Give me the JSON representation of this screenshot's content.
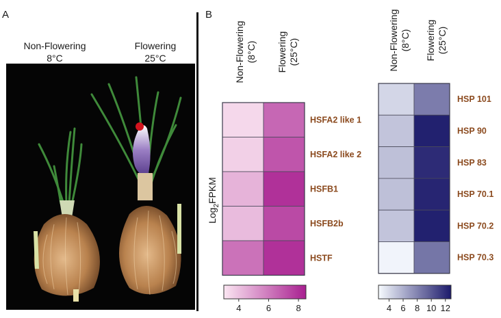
{
  "panel_a": {
    "letter": "A",
    "left": {
      "title": "Non-Flowering",
      "temp": "8°C"
    },
    "right": {
      "title": "Flowering",
      "temp": "25°C"
    }
  },
  "panel_b": {
    "letter": "B",
    "colorbar_label": "Log",
    "colorbar_label_sub": "2",
    "colorbar_label_tail": "FPKM",
    "col_headers": [
      {
        "line1": "Non-Flowering",
        "line2": "(8°C)"
      },
      {
        "line1": "Flowering",
        "line2": "(25°C)"
      }
    ]
  },
  "chart_data": [
    {
      "type": "heatmap",
      "title": "",
      "columns": [
        "Non-Flowering (8°C)",
        "Flowering (25°C)"
      ],
      "rows": [
        "HSFA2 like 1",
        "HSFA2 like 2",
        "HSFB1",
        "HSFB2b",
        "HSTF"
      ],
      "values": [
        [
          3.4,
          6.5
        ],
        [
          3.6,
          7.0
        ],
        [
          4.4,
          8.0
        ],
        [
          4.2,
          7.3
        ],
        [
          6.2,
          8.0
        ]
      ],
      "colorbar": {
        "min": 3,
        "max": 8.5,
        "ticks": [
          4,
          6,
          8
        ],
        "low_color": "#fbe6f2",
        "high_color": "#a81f90"
      }
    },
    {
      "type": "heatmap",
      "title": "",
      "columns": [
        "Non-Flowering (8°C)",
        "Flowering (25°C)"
      ],
      "rows": [
        "HSP 101",
        "HSP 90",
        "HSP 83",
        "HSP 70.1",
        "HSP 70.2",
        "HSP 70.3"
      ],
      "values": [
        [
          4.2,
          8.3
        ],
        [
          5.0,
          12.5
        ],
        [
          5.2,
          12.0
        ],
        [
          5.2,
          12.3
        ],
        [
          5.0,
          12.5
        ],
        [
          2.8,
          8.6
        ]
      ],
      "colorbar": {
        "min": 2.5,
        "max": 12.8,
        "ticks": [
          4,
          6,
          8,
          10,
          12
        ],
        "low_color": "#f7fbff",
        "high_color": "#1c1a6b"
      }
    }
  ]
}
